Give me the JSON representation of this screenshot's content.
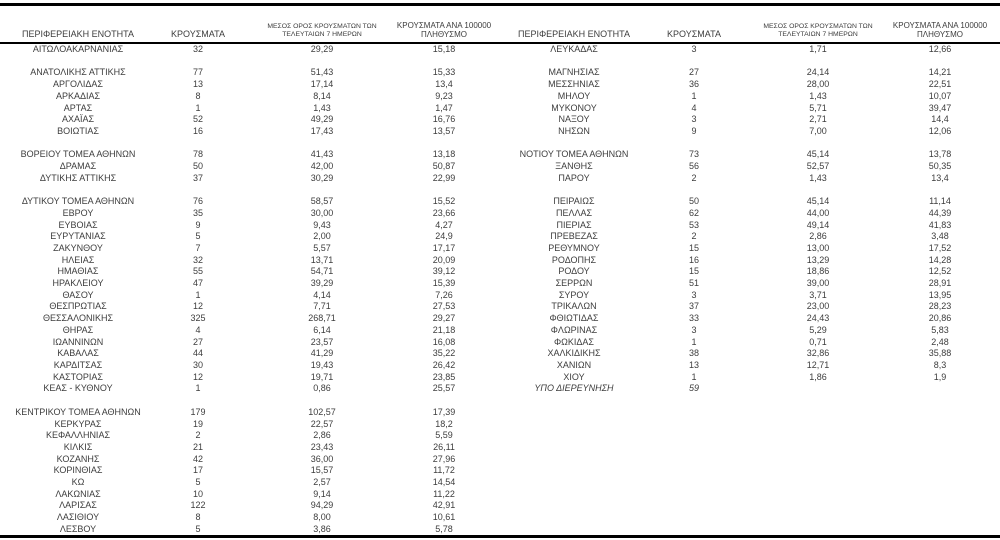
{
  "colors": {
    "background": "#ffffff",
    "text": "#3d3d3d",
    "rule": "#000000"
  },
  "table": {
    "row_slots": 42,
    "headers": [
      {
        "name": "header-regional-unit",
        "cell_name": "cell-regional-unit",
        "lines": [
          "ΠΕΡΙΦΕΡΕΙΑΚΗ ΕΝΟΤΗΤΑ"
        ]
      },
      {
        "name": "header-cases",
        "cell_name": "cell-cases",
        "lines": [
          "ΚΡΟΥΣΜΑΤΑ"
        ]
      },
      {
        "name": "header-7day-average",
        "cell_name": "cell-7day-average",
        "lines": [
          "ΜΕΣΟΣ ΟΡΟΣ ΚΡΟΥΣΜΑΤΩΝ ΤΩΝ",
          "ΤΕΛΕΥΤΑΙΩΝ 7 ΗΜΕΡΩΝ"
        ]
      },
      {
        "name": "header-cases-per-100000",
        "cell_name": "cell-cases-per-100000",
        "lines": [
          "ΚΡΟΥΣΜΑΤΑ ΑΝΑ 100000",
          "ΠΛΗΘΥΣΜΟ"
        ]
      }
    ],
    "left_rows": [
      [
        "ΑΙΤΩΛΟΑΚΑΡΝΑΝΙΑΣ",
        "32",
        "29,29",
        "15,18"
      ],
      null,
      [
        "ΑΝΑΤΟΛΙΚΗΣ ΑΤΤΙΚΗΣ",
        "77",
        "51,43",
        "15,33"
      ],
      [
        "ΑΡΓΟΛΙΔΑΣ",
        "13",
        "17,14",
        "13,4"
      ],
      [
        "ΑΡΚΑΔΙΑΣ",
        "8",
        "8,14",
        "9,23"
      ],
      [
        "ΑΡΤΑΣ",
        "1",
        "1,43",
        "1,47"
      ],
      [
        "ΑΧΑΪΑΣ",
        "52",
        "49,29",
        "16,76"
      ],
      [
        "ΒΟΙΩΤΙΑΣ",
        "16",
        "17,43",
        "13,57"
      ],
      null,
      [
        "ΒΟΡΕΙΟΥ ΤΟΜΕΑ ΑΘΗΝΩΝ",
        "78",
        "41,43",
        "13,18"
      ],
      [
        "ΔΡΑΜΑΣ",
        "50",
        "42,00",
        "50,87"
      ],
      [
        "ΔΥΤΙΚΗΣ ΑΤΤΙΚΗΣ",
        "37",
        "30,29",
        "22,99"
      ],
      null,
      [
        "ΔΥΤΙΚΟΥ ΤΟΜΕΑ ΑΘΗΝΩΝ",
        "76",
        "58,57",
        "15,52"
      ],
      [
        "ΕΒΡΟΥ",
        "35",
        "30,00",
        "23,66"
      ],
      [
        "ΕΥΒΟΙΑΣ",
        "9",
        "9,43",
        "4,27"
      ],
      [
        "ΕΥΡΥΤΑΝΙΑΣ",
        "5",
        "2,00",
        "24,9"
      ],
      [
        "ΖΑΚΥΝΘΟΥ",
        "7",
        "5,57",
        "17,17"
      ],
      [
        "ΗΛΕΙΑΣ",
        "32",
        "13,71",
        "20,09"
      ],
      [
        "ΗΜΑΘΙΑΣ",
        "55",
        "54,71",
        "39,12"
      ],
      [
        "ΗΡΑΚΛΕΙΟΥ",
        "47",
        "39,29",
        "15,39"
      ],
      [
        "ΘΑΣΟΥ",
        "1",
        "4,14",
        "7,26"
      ],
      [
        "ΘΕΣΠΡΩΤΙΑΣ",
        "12",
        "7,71",
        "27,53"
      ],
      [
        "ΘΕΣΣΑΛΟΝΙΚΗΣ",
        "325",
        "268,71",
        "29,27"
      ],
      [
        "ΘΗΡΑΣ",
        "4",
        "6,14",
        "21,18"
      ],
      [
        "ΙΩΑΝΝΙΝΩΝ",
        "27",
        "23,57",
        "16,08"
      ],
      [
        "ΚΑΒΑΛΑΣ",
        "44",
        "41,29",
        "35,22"
      ],
      [
        "ΚΑΡΔΙΤΣΑΣ",
        "30",
        "19,43",
        "26,42"
      ],
      [
        "ΚΑΣΤΟΡΙΑΣ",
        "12",
        "19,71",
        "23,85"
      ],
      [
        "ΚΕΑΣ - ΚΥΘΝΟΥ",
        "1",
        "0,86",
        "25,57"
      ],
      null,
      [
        "ΚΕΝΤΡΙΚΟΥ ΤΟΜΕΑ ΑΘΗΝΩΝ",
        "179",
        "102,57",
        "17,39"
      ],
      [
        "ΚΕΡΚΥΡΑΣ",
        "19",
        "22,57",
        "18,2"
      ],
      [
        "ΚΕΦΑΛΛΗΝΙΑΣ",
        "2",
        "2,86",
        "5,59"
      ],
      [
        "ΚΙΛΚΙΣ",
        "21",
        "23,43",
        "26,11"
      ],
      [
        "ΚΟΖΑΝΗΣ",
        "42",
        "36,00",
        "27,96"
      ],
      [
        "ΚΟΡΙΝΘΙΑΣ",
        "17",
        "15,57",
        "11,72"
      ],
      [
        "ΚΩ",
        "5",
        "2,57",
        "14,54"
      ],
      [
        "ΛΑΚΩΝΙΑΣ",
        "10",
        "9,14",
        "11,22"
      ],
      [
        "ΛΑΡΙΣΑΣ",
        "122",
        "94,29",
        "42,91"
      ],
      [
        "ΛΑΣΙΘΙΟΥ",
        "8",
        "8,00",
        "10,61"
      ],
      [
        "ΛΕΣΒΟΥ",
        "5",
        "3,86",
        "5,78"
      ]
    ],
    "right_rows": [
      [
        "ΛΕΥΚΑΔΑΣ",
        "3",
        "1,71",
        "12,66"
      ],
      null,
      [
        "ΜΑΓΝΗΣΙΑΣ",
        "27",
        "24,14",
        "14,21"
      ],
      [
        "ΜΕΣΣΗΝΙΑΣ",
        "36",
        "28,00",
        "22,51"
      ],
      [
        "ΜΗΛΟΥ",
        "1",
        "1,43",
        "10,07"
      ],
      [
        "ΜΥΚΟΝΟΥ",
        "4",
        "5,71",
        "39,47"
      ],
      [
        "ΝΑΞΟΥ",
        "3",
        "2,71",
        "14,4"
      ],
      [
        "ΝΗΣΩΝ",
        "9",
        "7,00",
        "12,06"
      ],
      null,
      [
        "ΝΟΤΙΟΥ ΤΟΜΕΑ ΑΘΗΝΩΝ",
        "73",
        "45,14",
        "13,78"
      ],
      [
        "ΞΑΝΘΗΣ",
        "56",
        "52,57",
        "50,35"
      ],
      [
        "ΠΑΡΟΥ",
        "2",
        "1,43",
        "13,4"
      ],
      null,
      [
        "ΠΕΙΡΑΙΩΣ",
        "50",
        "45,14",
        "11,14"
      ],
      [
        "ΠΕΛΛΑΣ",
        "62",
        "44,00",
        "44,39"
      ],
      [
        "ΠΙΕΡΙΑΣ",
        "53",
        "49,14",
        "41,83"
      ],
      [
        "ΠΡΕΒΕΖΑΣ",
        "2",
        "2,86",
        "3,48"
      ],
      [
        "ΡΕΘΥΜΝΟΥ",
        "15",
        "13,00",
        "17,52"
      ],
      [
        "ΡΟΔΟΠΗΣ",
        "16",
        "13,29",
        "14,28"
      ],
      [
        "ΡΟΔΟΥ",
        "15",
        "18,86",
        "12,52"
      ],
      [
        "ΣΕΡΡΩΝ",
        "51",
        "39,00",
        "28,91"
      ],
      [
        "ΣΥΡΟΥ",
        "3",
        "3,71",
        "13,95"
      ],
      [
        "ΤΡΙΚΑΛΩΝ",
        "37",
        "23,00",
        "28,23"
      ],
      [
        "ΦΘΙΩΤΙΔΑΣ",
        "33",
        "24,43",
        "20,86"
      ],
      [
        "ΦΛΩΡΙΝΑΣ",
        "3",
        "5,29",
        "5,83"
      ],
      [
        "ΦΩΚΙΔΑΣ",
        "1",
        "0,71",
        "2,48"
      ],
      [
        "ΧΑΛΚΙΔΙΚΗΣ",
        "38",
        "32,86",
        "35,88"
      ],
      [
        "ΧΑΝΙΩΝ",
        "13",
        "12,71",
        "8,3"
      ],
      [
        "ΧΙΟΥ",
        "1",
        "1,86",
        "1,9"
      ],
      {
        "cells": [
          "ΥΠΟ ΔΙΕΡΕΥΝΗΣΗ",
          "59",
          "",
          ""
        ],
        "italic": true
      }
    ]
  }
}
